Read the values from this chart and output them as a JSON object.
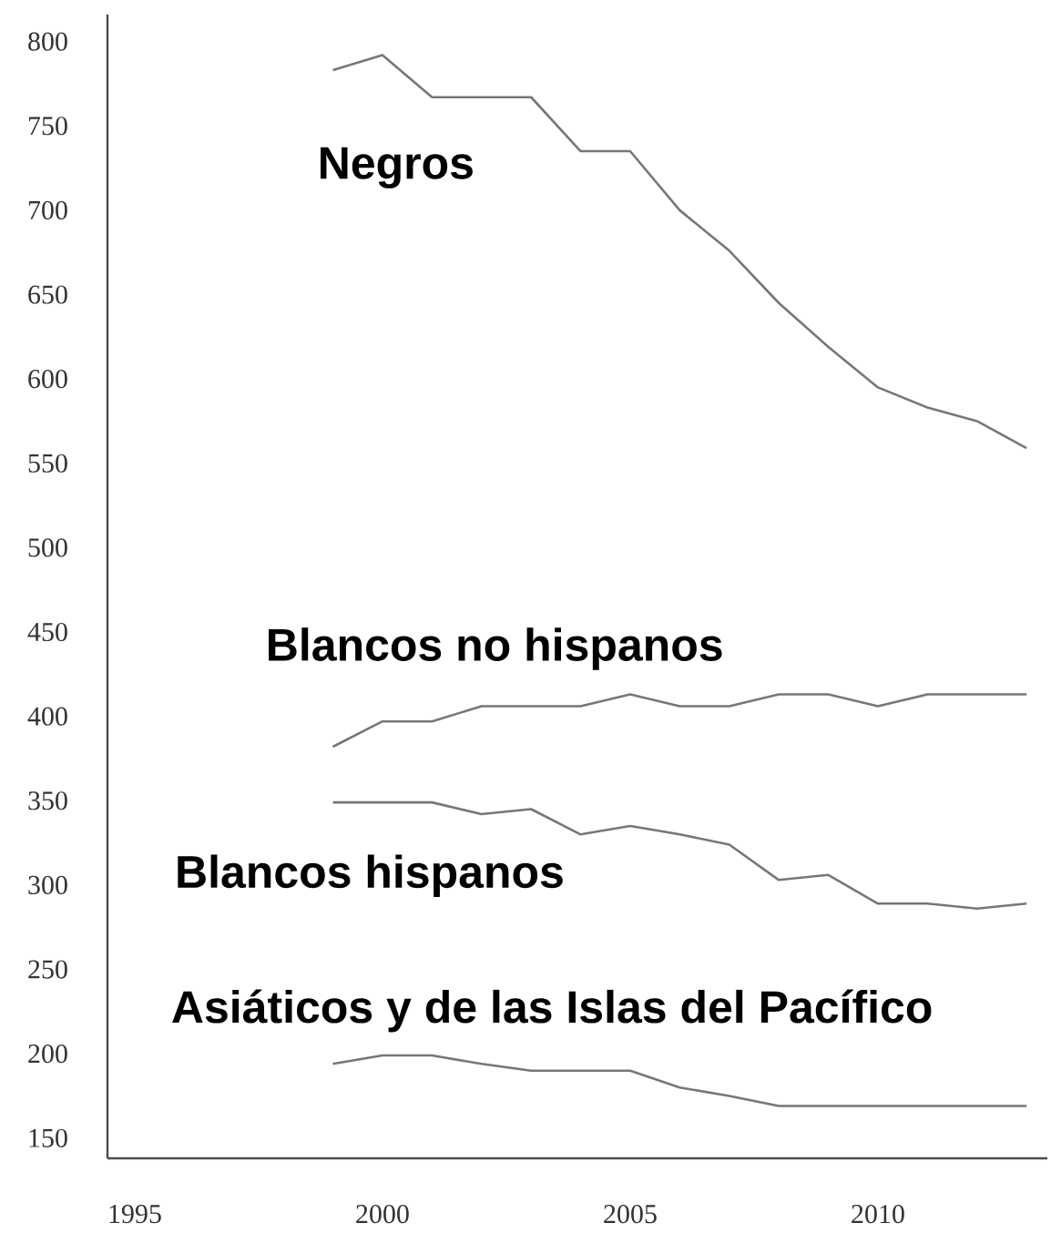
{
  "chart_data": {
    "type": "line",
    "x": [
      1999,
      2000,
      2001,
      2002,
      2003,
      2004,
      2005,
      2006,
      2007,
      2008,
      2009,
      2010,
      2011,
      2012,
      2013
    ],
    "series": [
      {
        "name": "Negros",
        "color": "#777777",
        "values": [
          783,
          792,
          767,
          767,
          767,
          735,
          735,
          700,
          676,
          645,
          619,
          595,
          583,
          575,
          559
        ]
      },
      {
        "name": "Blancos no hispanos",
        "color": "#777777",
        "values": [
          382,
          397,
          397,
          406,
          406,
          406,
          413,
          406,
          406,
          413,
          413,
          406,
          413,
          413,
          413
        ]
      },
      {
        "name": "Blancos hispanos",
        "color": "#777777",
        "values": [
          349,
          349,
          349,
          342,
          345,
          330,
          335,
          330,
          324,
          303,
          306,
          289,
          289,
          286,
          289
        ]
      },
      {
        "name": "Asiáticos y de las Islas del Pacífico",
        "color": "#777777",
        "values": [
          194,
          199,
          199,
          194,
          190,
          190,
          190,
          180,
          175,
          169,
          169,
          169,
          169,
          169,
          169
        ]
      }
    ],
    "xlim": [
      1994.45,
      2013.42
    ],
    "ylim": [
      138,
      816
    ],
    "xticks": [
      1995,
      2000,
      2005,
      2010
    ],
    "yticks": [
      150,
      200,
      250,
      300,
      350,
      400,
      450,
      500,
      550,
      600,
      650,
      700,
      750,
      800
    ],
    "grid": false,
    "marker": "none",
    "line_style": "solid"
  }
}
